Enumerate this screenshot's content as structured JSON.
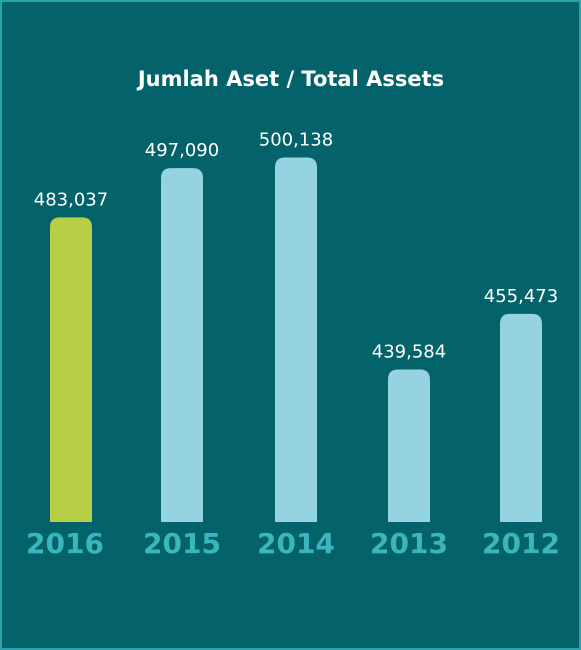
{
  "chart_data": {
    "type": "bar",
    "title": "Jumlah Aset / Total Assets",
    "categories": [
      "2016",
      "2015",
      "2014",
      "2013",
      "2012"
    ],
    "values": [
      483037,
      497090,
      500138,
      439584,
      455473
    ],
    "value_labels": [
      "483,037",
      "497,090",
      "500,138",
      "439,584",
      "455,473"
    ],
    "colors": [
      "#b6cf45",
      "#95d3e0",
      "#95d3e0",
      "#95d3e0",
      "#95d3e0"
    ],
    "ylim": [
      396000,
      520000
    ]
  }
}
